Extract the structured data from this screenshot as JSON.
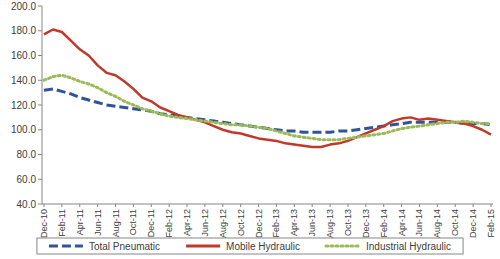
{
  "chart_data": {
    "type": "line",
    "categories": [
      "Dec-10",
      null,
      "Feb-11",
      null,
      "Apr-11",
      null,
      "Jun-11",
      null,
      "Aug-11",
      null,
      "Oct-11",
      null,
      "Dec-11",
      null,
      "Feb-12",
      null,
      "Apr-12",
      null,
      "Jun-12",
      null,
      "Aug-12",
      null,
      "Oct-12",
      null,
      "Dec-12",
      null,
      "Feb-13",
      null,
      "Apr-13",
      null,
      "Jun-13",
      null,
      "Aug-13",
      null,
      "Oct-13",
      null,
      "Dec-13",
      null,
      "Feb-14",
      null,
      "Apr-14",
      null,
      "Jun-14",
      null,
      "Aug-14",
      null,
      "Oct-14",
      null,
      "Dec-14",
      null,
      "Feb-15"
    ],
    "series": [
      {
        "name": "Total Pneumatic",
        "color": "#2f5597",
        "line_style": "dashed",
        "values": [
          132,
          133,
          131,
          129,
          126,
          124,
          122,
          120,
          119,
          118,
          117,
          116,
          115,
          113,
          112,
          111,
          110,
          109,
          108,
          107,
          106,
          105,
          104,
          103,
          102,
          101,
          100,
          99,
          99,
          98,
          98,
          98,
          98,
          99,
          99,
          100,
          101,
          102,
          103,
          104,
          105,
          106,
          106,
          106,
          106,
          106,
          106,
          105,
          105,
          105,
          104
        ]
      },
      {
        "name": "Mobile Hydraulic",
        "color": "#c0392b",
        "line_style": "solid",
        "values": [
          177,
          181,
          179,
          172,
          165,
          160,
          152,
          146,
          144,
          139,
          133,
          126,
          123,
          118,
          115,
          112,
          110,
          108,
          106,
          103,
          100,
          98,
          97,
          95,
          93,
          92,
          91,
          89,
          88,
          87,
          86,
          86,
          88,
          89,
          91,
          94,
          97,
          100,
          103,
          107,
          109,
          110,
          108,
          109,
          108,
          107,
          106,
          105,
          103,
          100,
          96
        ]
      },
      {
        "name": "Industrial Hydraulic",
        "color": "#9bbb59",
        "line_style": "dotted",
        "values": [
          140,
          143,
          144,
          142,
          139,
          137,
          134,
          130,
          127,
          123,
          120,
          117,
          115,
          113,
          111,
          110,
          109,
          108,
          107,
          106,
          105,
          104,
          104,
          103,
          102,
          101,
          99,
          97,
          95,
          94,
          93,
          92,
          92,
          92,
          93,
          94,
          95,
          96,
          97,
          99,
          101,
          102,
          103,
          104,
          105,
          106,
          106,
          107,
          106,
          105,
          105
        ]
      }
    ],
    "ylim": [
      40,
      200
    ],
    "yticks": [
      {
        "value": 40,
        "label": "40.0"
      },
      {
        "value": 60,
        "label": "60.0"
      },
      {
        "value": 80,
        "label": "80.0"
      },
      {
        "value": 100,
        "label": "100.0"
      },
      {
        "value": 120,
        "label": "120.0"
      },
      {
        "value": 140,
        "label": "140.0"
      },
      {
        "value": 160,
        "label": "160.0"
      },
      {
        "value": 180,
        "label": "180.0"
      },
      {
        "value": 200,
        "label": "200.0"
      }
    ],
    "grid": false,
    "legend": "bottom"
  }
}
